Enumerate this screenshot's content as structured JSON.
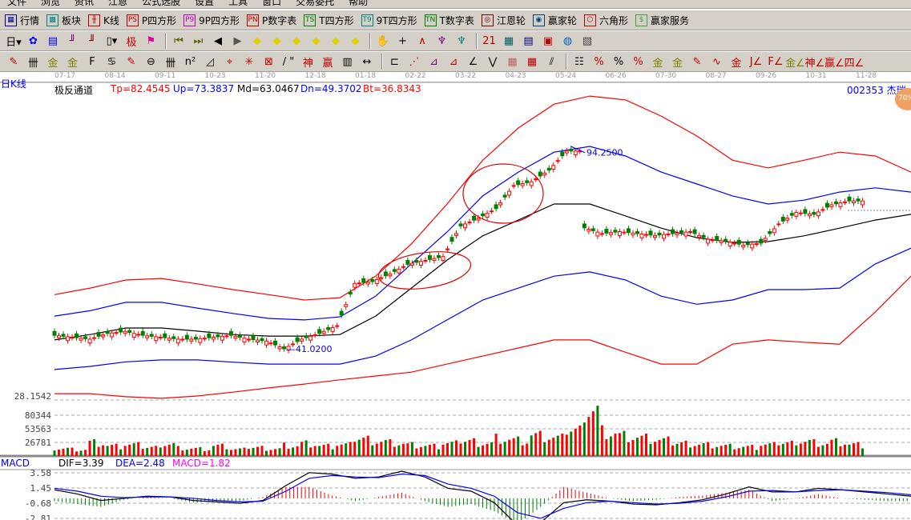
{
  "menu": [
    "文件",
    "浏览",
    "资讯",
    "江恩",
    "公式选股",
    "设置",
    "工具",
    "窗口",
    "交易委托",
    "帮助"
  ],
  "toolbar1": [
    {
      "label": "行情",
      "icon": "quote-table-icon",
      "glyph": "▦",
      "color": "#000080"
    },
    {
      "label": "板块",
      "icon": "sector-icon",
      "glyph": "▩",
      "color": "#008080"
    },
    {
      "label": "K线",
      "icon": "kline-icon",
      "glyph": "╫",
      "color": "#c00000"
    },
    {
      "label": "P四方形",
      "icon": "ps-icon",
      "glyph": "PS",
      "color": "#c00000"
    },
    {
      "label": "9P四方形",
      "icon": "p9-icon",
      "glyph": "P9",
      "color": "#c000c0"
    },
    {
      "label": "P数字表",
      "icon": "pn-icon",
      "glyph": "PN",
      "color": "#c00000"
    },
    {
      "label": "T四方形",
      "icon": "ts-icon",
      "glyph": "TS",
      "color": "#008000"
    },
    {
      "label": "9T四方形",
      "icon": "t9-icon",
      "glyph": "T9",
      "color": "#008080"
    },
    {
      "label": "T数字表",
      "icon": "tn-icon",
      "glyph": "TN",
      "color": "#008000"
    },
    {
      "label": "江恩轮",
      "icon": "gann-wheel-icon",
      "glyph": "◎",
      "color": "#800000"
    },
    {
      "label": "赢家轮",
      "icon": "winner-wheel-icon",
      "glyph": "◉",
      "color": "#004080"
    },
    {
      "label": "六角形",
      "icon": "hexagon-icon",
      "glyph": "⬡",
      "color": "#c00000"
    },
    {
      "label": "赢家服务",
      "icon": "dollar-icon",
      "glyph": "$",
      "color": "#40a040"
    }
  ],
  "toolbar2": [
    {
      "icon": "period-day-icon",
      "glyph": "日▾",
      "color": "#000"
    },
    {
      "icon": "chart-style-icon",
      "glyph": "✿",
      "color": "#0000ff"
    },
    {
      "icon": "notes-icon",
      "glyph": "▤",
      "color": "#0000ff"
    },
    {
      "icon": "indicator3-icon",
      "glyph": "╜",
      "color": "#800080"
    },
    {
      "icon": "indicator9-icon",
      "glyph": "╜",
      "color": "#800000"
    },
    {
      "icon": "candle-type-icon",
      "glyph": "▯▾",
      "color": "#000"
    },
    {
      "icon": "extreme-icon",
      "glyph": "极",
      "color": "#c00000"
    },
    {
      "icon": "flag-icon",
      "glyph": "⚑",
      "color": "#e000a0"
    },
    {
      "sep": true
    },
    {
      "icon": "first-icon",
      "glyph": "⏮",
      "color": "#606000"
    },
    {
      "icon": "last-icon",
      "glyph": "⏭",
      "color": "#606000"
    },
    {
      "icon": "prev-icon",
      "glyph": "◀",
      "color": "#000"
    },
    {
      "icon": "next-icon",
      "glyph": "▶",
      "color": "#555"
    },
    {
      "icon": "left-diamond-icon",
      "glyph": "◆",
      "color": "#e0d000"
    },
    {
      "icon": "right-diamond-icon",
      "glyph": "◆",
      "color": "#e0d000"
    },
    {
      "icon": "expand-h-icon",
      "glyph": "◆",
      "color": "#e0d000"
    },
    {
      "icon": "shrink-h-icon",
      "glyph": "◆",
      "color": "#e0d000"
    },
    {
      "icon": "expand-all-icon",
      "glyph": "◆",
      "color": "#e0d000"
    },
    {
      "icon": "expand-v-icon",
      "glyph": "◆",
      "color": "#e0d000"
    },
    {
      "sep": true
    },
    {
      "icon": "hand-icon",
      "glyph": "✋",
      "color": "#000"
    },
    {
      "icon": "crosshair-icon",
      "glyph": "+",
      "color": "#000"
    },
    {
      "icon": "line-tool-icon",
      "glyph": "∧",
      "color": "#c00000"
    },
    {
      "icon": "pattern-icon",
      "glyph": "♆",
      "color": "#800080"
    },
    {
      "icon": "pattern2-icon",
      "glyph": "♆",
      "color": "#008080"
    },
    {
      "sep": true
    },
    {
      "icon": "calendar-icon",
      "glyph": "21",
      "color": "#c00000"
    },
    {
      "icon": "calculator-icon",
      "glyph": "▦",
      "color": "#006060"
    },
    {
      "icon": "report-icon",
      "glyph": "▤",
      "color": "#000080"
    },
    {
      "icon": "save-icon",
      "glyph": "▣",
      "color": "#c00000"
    },
    {
      "icon": "network-icon",
      "glyph": "◍",
      "color": "#0060c0"
    },
    {
      "icon": "trade-icon",
      "glyph": "▧",
      "color": "#404040"
    }
  ],
  "toolbar3": [
    {
      "icon": "pen-icon",
      "glyph": "✎",
      "color": "#c00000"
    },
    {
      "icon": "parallel-lines-icon",
      "glyph": "卌",
      "color": "#000"
    },
    {
      "icon": "gold-split-icon",
      "glyph": "金",
      "color": "#808000"
    },
    {
      "icon": "gold-split2-icon",
      "glyph": "金",
      "color": "#808000"
    },
    {
      "icon": "fib-icon",
      "glyph": "F",
      "color": "#000"
    },
    {
      "icon": "spiral-icon",
      "glyph": "♋",
      "color": "#000"
    },
    {
      "icon": "marker-icon",
      "glyph": "✎",
      "color": "#c00000"
    },
    {
      "icon": "circle-cycle-icon",
      "glyph": "⊖",
      "color": "#000"
    },
    {
      "icon": "cycle-lines-icon",
      "glyph": "卌",
      "color": "#000"
    },
    {
      "icon": "n2-icon",
      "glyph": "n²",
      "color": "#000"
    },
    {
      "icon": "triangle-icon",
      "glyph": "◿",
      "color": "#000"
    },
    {
      "icon": "target-icon",
      "glyph": "⌖",
      "color": "#c00000"
    },
    {
      "icon": "web-icon",
      "glyph": "✳",
      "color": "#c00000"
    },
    {
      "icon": "box-web-icon",
      "glyph": "⊠",
      "color": "#c00000"
    },
    {
      "icon": "angle-lines-icon",
      "glyph": "/ \"",
      "color": "#000"
    },
    {
      "icon": "shen-icon",
      "glyph": "神",
      "color": "#c00000"
    },
    {
      "icon": "ying-icon",
      "glyph": "赢",
      "color": "#c00000"
    },
    {
      "icon": "ruler-icon",
      "glyph": "▥",
      "color": "#000"
    },
    {
      "icon": "measure-icon",
      "glyph": "↔",
      "color": "#000"
    },
    {
      "sep": true
    },
    {
      "icon": "box-tool-icon",
      "glyph": "⊏",
      "color": "#000"
    },
    {
      "icon": "fan-icon",
      "glyph": "⋰",
      "color": "#c00000"
    },
    {
      "icon": "gann-box-icon",
      "glyph": "⊿",
      "color": "#800080"
    },
    {
      "icon": "gann-box2-icon",
      "glyph": "⊿",
      "color": "#c00000"
    },
    {
      "icon": "gann-fan-icon",
      "glyph": "∠",
      "color": "#000"
    },
    {
      "icon": "zigzag-icon",
      "glyph": "⋁",
      "color": "#000"
    },
    {
      "icon": "grid-icon",
      "glyph": "▦",
      "color": "#c06060"
    },
    {
      "icon": "grid2-icon",
      "glyph": "▦",
      "color": "#c00000"
    },
    {
      "icon": "channel-icon",
      "glyph": "⫽",
      "color": "#000"
    },
    {
      "sep": true
    },
    {
      "icon": "table-icon",
      "glyph": "☷",
      "color": "#000"
    },
    {
      "icon": "percent-line-icon",
      "glyph": "%",
      "color": "#c00000"
    },
    {
      "icon": "percent-icon",
      "glyph": "%",
      "color": "#000"
    },
    {
      "icon": "percent-split-icon",
      "glyph": "%",
      "color": "#c00000"
    },
    {
      "icon": "gold-circle-icon",
      "glyph": "金",
      "color": "#808000"
    },
    {
      "icon": "gold-lines-icon",
      "glyph": "金",
      "color": "#808000"
    },
    {
      "icon": "pen-line-icon",
      "glyph": "✎",
      "color": "#c00000"
    },
    {
      "icon": "wave-icon",
      "glyph": "∿",
      "color": "#c00000"
    },
    {
      "icon": "gold-bar-icon",
      "glyph": "金",
      "color": "#c00000"
    },
    {
      "icon": "j-angle-icon",
      "glyph": "J∠",
      "color": "#c00000"
    },
    {
      "icon": "f-angle-icon",
      "glyph": "F∠",
      "color": "#c00000"
    },
    {
      "icon": "gold-angle-icon",
      "glyph": "金∠",
      "color": "#808000"
    },
    {
      "icon": "shen-angle-icon",
      "glyph": "神∠",
      "color": "#c00000"
    },
    {
      "icon": "ying-angle-icon",
      "glyph": "赢∠",
      "color": "#c00000"
    },
    {
      "icon": "four-angle-icon",
      "glyph": "四∠",
      "color": "#c00000"
    }
  ],
  "date_axis": [
    "07-17",
    "08-14",
    "09-11",
    "10-23",
    "11-20",
    "12-18",
    "01-18",
    "02-22",
    "03-22",
    "04-23",
    "05-24",
    "06-26",
    "07-30",
    "08-27",
    "09-26",
    "10-31",
    "11-28"
  ],
  "chart_data": {
    "type": "candlestick",
    "period": "日K线",
    "indicator": {
      "name": "极反通道",
      "tp": "Tp=82.4545",
      "up": "Up=73.3837",
      "md": "Md=63.0467",
      "dn": "Dn=49.3702",
      "bt": "Bt=36.8343"
    },
    "symbol": "002353 杰瑞",
    "badge": "70%",
    "ylim": [
      28.1542,
      108
    ],
    "bottom_price_label": "28.1542",
    "annotations": [
      {
        "text": "94.2500",
        "price": 94.25
      },
      {
        "text": "41.0200",
        "price": 41.02
      }
    ],
    "colors": {
      "up": "#ff0000",
      "down": "#008000",
      "tp": "#ff0000",
      "upband": "#0000ff",
      "md": "#000000",
      "dn": "#0000ff",
      "bt": "#ff0000"
    },
    "bands": {
      "tp": [
        55.6,
        57.3,
        59.4,
        59.8,
        58.4,
        56.9,
        55.6,
        54.2,
        54.8,
        60.4,
        68.8,
        79.2,
        90.6,
        99.0,
        105.2,
        107.3,
        106.3,
        102.1,
        96.9,
        90.6,
        88.6,
        90.6,
        92.7,
        91.7,
        87.5
      ],
      "up": [
        50.0,
        51.4,
        53.6,
        53.6,
        52.1,
        50.7,
        49.4,
        49.0,
        49.8,
        55.2,
        63.6,
        71.9,
        81.3,
        87.5,
        92.7,
        94.2,
        91.7,
        87.5,
        84.4,
        81.3,
        79.2,
        80.2,
        82.3,
        83.4,
        82.3
      ],
      "md": [
        43.8,
        45.2,
        46.9,
        46.9,
        46.1,
        45.2,
        44.8,
        44.8,
        45.2,
        50.0,
        57.3,
        64.6,
        70.9,
        75.0,
        79.2,
        79.2,
        76.1,
        72.9,
        70.4,
        69.2,
        69.4,
        70.9,
        72.9,
        75.0,
        76.5
      ],
      "dn": [
        36.1,
        36.9,
        38.1,
        38.6,
        38.6,
        38.0,
        37.5,
        37.5,
        37.5,
        39.6,
        43.8,
        49.0,
        54.2,
        57.3,
        60.4,
        61.5,
        59.4,
        55.2,
        53.1,
        54.2,
        56.9,
        56.9,
        57.3,
        63.6,
        67.7
      ],
      "bt": [
        29.8,
        29.8,
        29.0,
        28.6,
        29.2,
        30.2,
        31.3,
        32.3,
        33.4,
        34.4,
        35.4,
        37.5,
        39.6,
        41.7,
        43.8,
        43.8,
        40.6,
        37.5,
        37.5,
        42.7,
        43.8,
        43.2,
        42.7,
        51.1,
        60.4
      ]
    },
    "closes": [
      45.0,
      44.5,
      44.0,
      45.5,
      46.0,
      45.0,
      44.5,
      44.0,
      44.0,
      44.5,
      45.0,
      44.0,
      43.5,
      41.5,
      44.0,
      45.5,
      47.5,
      58.5,
      59.0,
      61.0,
      63.5,
      64.5,
      65.5,
      73.5,
      75.5,
      78.0,
      84.0,
      85.0,
      88.0,
      93.0,
      73.0,
      71.5,
      72.0,
      71.5,
      71.0,
      71.5,
      72.0,
      70.0,
      69.5,
      68.5,
      69.0,
      74.0,
      77.0,
      76.5,
      79.0,
      80.0
    ],
    "volume": {
      "ticks": [
        "80344",
        "53563",
        "26781"
      ],
      "tick_values": [
        80344,
        53563,
        26781
      ],
      "values": [
        18000,
        15000,
        30000,
        22000,
        25000,
        20000,
        28000,
        18000,
        16000,
        22000,
        15000,
        20000,
        17000,
        24000,
        28000,
        22000,
        25000,
        40000,
        35000,
        30000,
        25000,
        22000,
        28000,
        35000,
        30000,
        40000,
        35000,
        45000,
        40000,
        60000,
        110000,
        55000,
        45000,
        40000,
        35000,
        30000,
        28000,
        25000,
        22000,
        20000,
        25000,
        30000,
        35000,
        30000,
        32000,
        25000
      ]
    },
    "macd": {
      "label": "MACD",
      "dif": "DIF=3.39",
      "dea": "DEA=2.48",
      "macd": "MACD=1.82",
      "ticks": [
        "3.58",
        "1.45",
        "-0.68",
        "-2.81"
      ],
      "tick_values": [
        3.58,
        1.45,
        -0.68,
        -2.81
      ],
      "dif_series": [
        1.2,
        0.6,
        -0.3,
        0.0,
        0.3,
        0.2,
        -0.3,
        -0.5,
        -0.7,
        -0.3,
        1.8,
        3.6,
        3.4,
        2.8,
        3.0,
        3.8,
        3.0,
        1.4,
        1.0,
        -0.6,
        -3.8,
        -3.4,
        -0.6,
        -0.2,
        -0.4,
        -0.8,
        -0.9,
        -0.6,
        -0.2,
        0.6,
        1.6,
        0.9,
        0.9,
        1.4,
        1.2,
        0.9,
        0.6,
        0.3
      ],
      "dea_series": [
        1.4,
        1.0,
        0.3,
        0.1,
        0.2,
        0.2,
        0.0,
        -0.3,
        -0.5,
        -0.4,
        1.0,
        2.8,
        3.2,
        3.0,
        2.9,
        3.4,
        3.2,
        2.0,
        1.4,
        0.3,
        -2.0,
        -2.8,
        -1.4,
        -0.6,
        -0.4,
        -0.6,
        -0.8,
        -0.7,
        -0.4,
        0.2,
        1.0,
        1.1,
        0.9,
        1.1,
        1.2,
        1.0,
        0.8,
        0.5
      ]
    }
  }
}
